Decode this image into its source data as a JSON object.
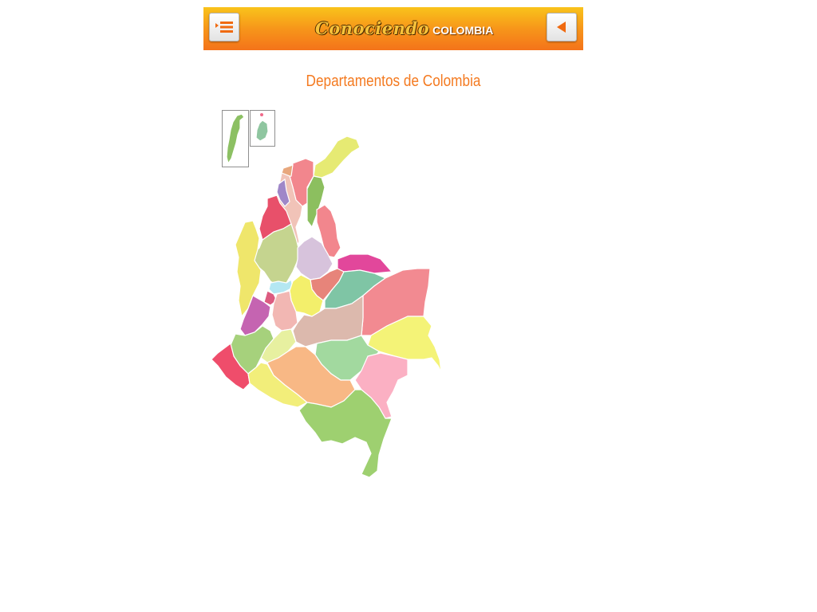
{
  "header": {
    "brand_script": "Conociendo",
    "brand_word": "COLOMBIA",
    "menu_icon": "menu-list-icon",
    "back_icon": "back-arrow-icon",
    "accent_color": "#f47a20"
  },
  "page": {
    "title": "Departamentos de Colombia"
  },
  "map": {
    "insets": [
      {
        "name": "San Andrés",
        "color": "#8cc063"
      },
      {
        "name": "Providencia",
        "color": "#8fc6a0"
      }
    ],
    "departments": [
      {
        "name": "La Guajira",
        "color": "#e6ea73"
      },
      {
        "name": "Magdalena",
        "color": "#f2868d"
      },
      {
        "name": "Atlántico",
        "color": "#e8a77d"
      },
      {
        "name": "Cesar",
        "color": "#8cbf5f"
      },
      {
        "name": "Bolívar",
        "color": "#f1c3b8"
      },
      {
        "name": "Sucre",
        "color": "#9f87c8"
      },
      {
        "name": "Córdoba",
        "color": "#e8506a"
      },
      {
        "name": "Norte de Santander",
        "color": "#f2868d"
      },
      {
        "name": "Antioquia",
        "color": "#c5d48f"
      },
      {
        "name": "Santander",
        "color": "#d7c3dc"
      },
      {
        "name": "Arauca",
        "color": "#e2479b"
      },
      {
        "name": "Boyacá",
        "color": "#e7847a"
      },
      {
        "name": "Casanare",
        "color": "#7fc5a5"
      },
      {
        "name": "Vichada",
        "color": "#f28a91"
      },
      {
        "name": "Chocó",
        "color": "#efe66b"
      },
      {
        "name": "Caldas",
        "color": "#b4e7f2"
      },
      {
        "name": "Cundinamarca",
        "color": "#f3ef6b"
      },
      {
        "name": "Risaralda",
        "color": "#dc5b80"
      },
      {
        "name": "Tolima",
        "color": "#f2b7b3"
      },
      {
        "name": "Meta",
        "color": "#dcb9ad"
      },
      {
        "name": "Guainía",
        "color": "#f4f377"
      },
      {
        "name": "Valle del Cauca",
        "color": "#c564b1"
      },
      {
        "name": "Huila",
        "color": "#e7f0a0"
      },
      {
        "name": "Cauca",
        "color": "#a6d17c"
      },
      {
        "name": "Guaviare",
        "color": "#a2d99f"
      },
      {
        "name": "Vaupés",
        "color": "#fbb0c3"
      },
      {
        "name": "Nariño",
        "color": "#ef4d6b"
      },
      {
        "name": "Putumayo",
        "color": "#f2ee7a"
      },
      {
        "name": "Caquetá",
        "color": "#f8b885"
      },
      {
        "name": "Amazonas",
        "color": "#9ed070"
      }
    ]
  }
}
